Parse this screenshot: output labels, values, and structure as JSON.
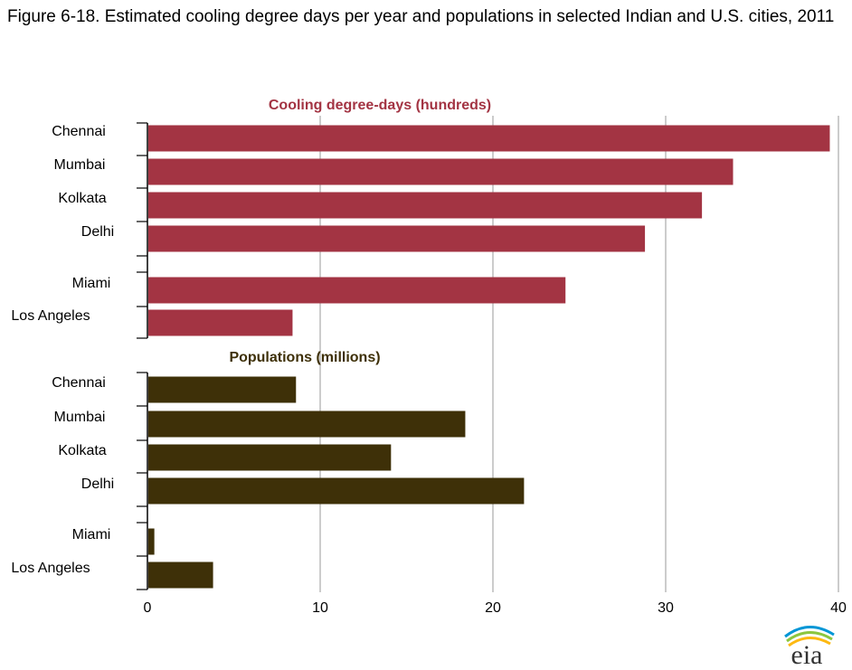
{
  "title": "Figure 6-18. Estimated cooling degree days per year and populations in selected Indian and U.S. cities, 2011",
  "chart_data": {
    "type": "bar",
    "orientation": "horizontal",
    "xlim": [
      0,
      40
    ],
    "xticks": [
      0,
      10,
      20,
      30,
      40
    ],
    "grid": "vertical",
    "panels": [
      {
        "name": "Cooling degree-days (hundreds)",
        "color": "#a33443",
        "categories": [
          "Chennai",
          "Mumbai",
          "Kolkata",
          "Delhi",
          "Miami",
          "Los Angeles"
        ],
        "values": [
          39.5,
          33.9,
          32.1,
          28.8,
          24.2,
          8.4
        ]
      },
      {
        "name": "Populations (millions)",
        "color": "#3e3008",
        "categories": [
          "Chennai",
          "Mumbai",
          "Kolkata",
          "Delhi",
          "Miami",
          "Los Angeles"
        ],
        "values": [
          8.6,
          18.4,
          14.1,
          21.8,
          0.4,
          3.8
        ]
      }
    ]
  },
  "logo": {
    "text": "eia",
    "arc_colors": [
      "#0096d6",
      "#8cc63f",
      "#fdb913"
    ]
  }
}
